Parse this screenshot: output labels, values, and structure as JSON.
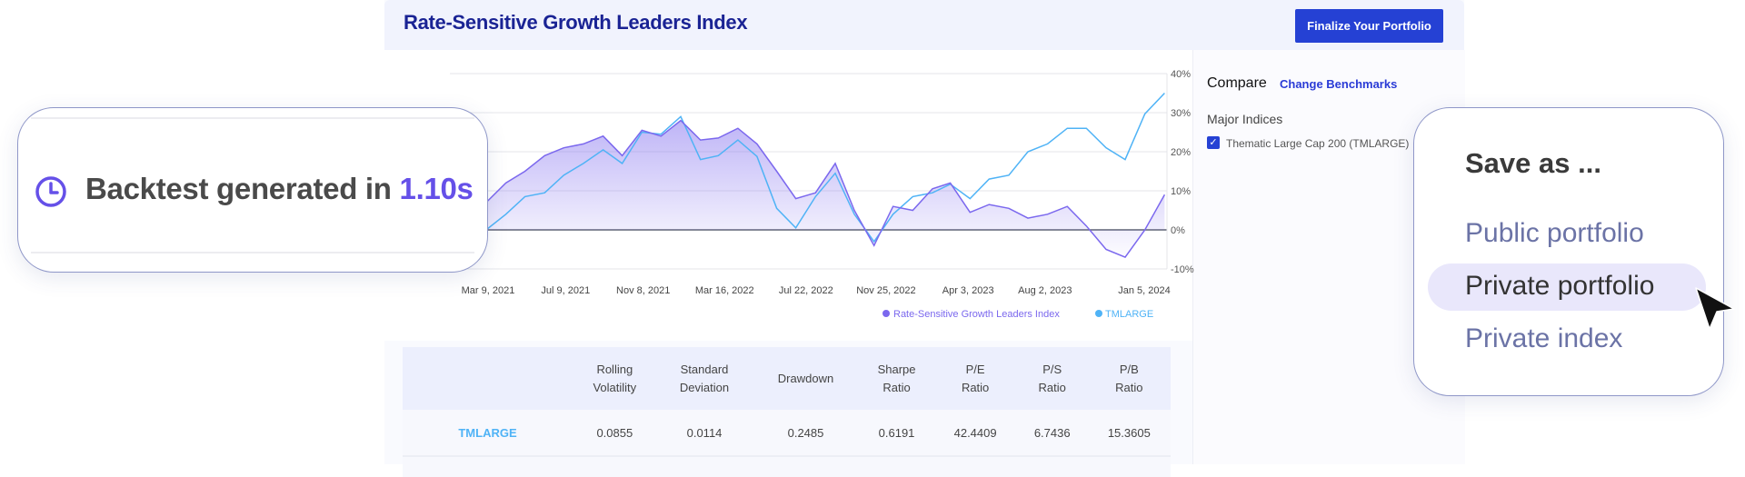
{
  "header": {
    "title": "Rate-Sensitive Growth Leaders Index",
    "finalize_label": "Finalize Your Portfolio"
  },
  "sidebar": {
    "compare_label": "Compare",
    "change_benchmarks": "Change Benchmarks",
    "section": "Major Indices",
    "items": [
      {
        "label": "Thematic Large Cap 200 (TMLARGE)",
        "checked": true
      }
    ]
  },
  "chart_data": {
    "type": "line",
    "y_ticks": [
      "40%",
      "30%",
      "20%",
      "10%",
      "0%",
      "-10%"
    ],
    "ylim": [
      -10,
      40
    ],
    "x_ticks": [
      "Mar 9, 2021",
      "Jul 9, 2021",
      "Nov 8, 2021",
      "Mar 16, 2022",
      "Jul 22, 2022",
      "Nov 25, 2022",
      "Apr 3, 2023",
      "Aug 2, 2023",
      "Jan 5, 2024"
    ],
    "grid": true,
    "legend_position": "bottom-right",
    "x": [
      "2021-03",
      "2021-04",
      "2021-05",
      "2021-06",
      "2021-07",
      "2021-08",
      "2021-09",
      "2021-10",
      "2021-11",
      "2021-12",
      "2022-01",
      "2022-02",
      "2022-03",
      "2022-04",
      "2022-05",
      "2022-06",
      "2022-07",
      "2022-08",
      "2022-09",
      "2022-10",
      "2022-11",
      "2022-12",
      "2023-01",
      "2023-02",
      "2023-03",
      "2023-04",
      "2023-05",
      "2023-06",
      "2023-07",
      "2023-08",
      "2023-09",
      "2023-10",
      "2023-11",
      "2023-12",
      "2024-01",
      "2024-02"
    ],
    "series": [
      {
        "name": "Rate-Sensitive Growth Leaders Index",
        "color": "#7b68ee",
        "values": [
          7,
          12,
          15,
          19,
          21,
          22,
          24,
          19,
          25.5,
          24,
          28,
          23,
          23.5,
          26,
          22,
          15,
          8,
          9.5,
          17,
          5,
          -4,
          6,
          5,
          10.5,
          12,
          4.5,
          6.5,
          5.5,
          3,
          4,
          6,
          1,
          -5,
          -7,
          0,
          9
        ]
      },
      {
        "name": "TMLARGE",
        "color": "#4fb3f6",
        "values": [
          0,
          4,
          8.5,
          9.5,
          14,
          17,
          20.5,
          17,
          25,
          24.5,
          29,
          18,
          19,
          23,
          18.8,
          5.5,
          0.5,
          8.5,
          14.5,
          4,
          -3,
          4,
          8.5,
          9.5,
          11.7,
          8,
          13,
          14,
          20,
          22,
          26,
          26,
          21,
          18,
          29.7,
          35
        ]
      }
    ]
  },
  "table": {
    "headers": [
      [
        "Rolling",
        "Volatility"
      ],
      [
        "Standard",
        "Deviation"
      ],
      [
        "Drawdown"
      ],
      [
        "Sharpe",
        "Ratio"
      ],
      [
        "P/E",
        "Ratio"
      ],
      [
        "P/S",
        "Ratio"
      ],
      [
        "P/B",
        "Ratio"
      ]
    ],
    "rows": [
      {
        "name": "TMLARGE",
        "values": [
          "0.0855",
          "0.0114",
          "0.2485",
          "0.6191",
          "42.4409",
          "6.7436",
          "15.3605"
        ]
      }
    ]
  },
  "backtest": {
    "prefix": "Backtest generated in",
    "time": "1.10s",
    "icon": "clock-icon"
  },
  "save_menu": {
    "title": "Save as ...",
    "options": [
      "Public portfolio",
      "Private portfolio",
      "Private index"
    ],
    "highlighted": "Private portfolio"
  }
}
